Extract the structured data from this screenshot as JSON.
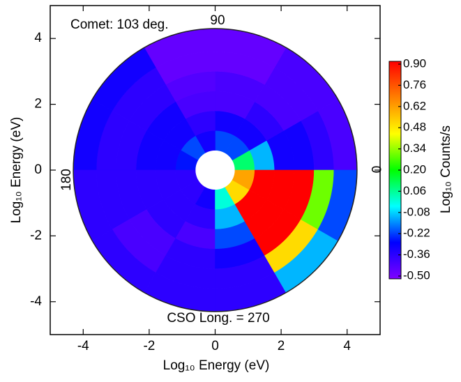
{
  "chart_data": {
    "type": "polar-heatmap",
    "annotations": [
      "Comet: 103 deg.",
      "90",
      "180",
      "0",
      "CSO Long. = 270"
    ],
    "xlabel": "Log₁₀ Energy (eV)",
    "ylabel": "Log₁₀ Energy (eV)",
    "xlim": [
      -5,
      5
    ],
    "ylim": [
      -5,
      5
    ],
    "xticks": [
      -4,
      -2,
      0,
      2,
      4
    ],
    "yticks": [
      -4,
      -2,
      0,
      2,
      4
    ],
    "angle_edges": [
      0,
      30,
      60,
      90,
      120,
      150,
      180,
      210,
      240,
      270,
      300,
      330,
      360
    ],
    "radius_edges": [
      0.6,
      1.2,
      1.8,
      2.4,
      3.0,
      3.6,
      4.3
    ],
    "values": [
      [
        0.1,
        -0.1,
        -0.3,
        -0.3,
        -0.35,
        -0.4
      ],
      [
        -0.2,
        -0.3,
        -0.35,
        -0.4,
        -0.4,
        -0.4
      ],
      [
        -0.2,
        -0.3,
        -0.4,
        -0.4,
        -0.45,
        -0.45
      ],
      [
        -0.3,
        -0.35,
        -0.4,
        -0.42,
        -0.45,
        -0.45
      ],
      [
        -0.2,
        -0.3,
        -0.3,
        -0.35,
        -0.35,
        -0.3
      ],
      [
        -0.25,
        -0.3,
        -0.3,
        -0.35,
        -0.35,
        -0.3
      ],
      [
        -0.35,
        -0.35,
        -0.35,
        -0.35,
        -0.35,
        -0.35
      ],
      [
        -0.35,
        -0.35,
        -0.35,
        -0.4,
        -0.4,
        -0.35
      ],
      [
        -0.3,
        -0.35,
        -0.4,
        -0.35,
        -0.35,
        -0.35
      ],
      [
        0.0,
        -0.1,
        -0.2,
        -0.3,
        -0.35,
        -0.35
      ],
      [
        0.5,
        0.9,
        0.9,
        0.9,
        0.5,
        -0.1
      ],
      [
        0.6,
        0.9,
        0.9,
        0.9,
        0.3,
        -0.2
      ]
    ],
    "colorbar": {
      "label": "Log₁₀ Counts/s",
      "clim": [
        -0.5,
        0.9
      ],
      "colormap": [
        "#7f00ff",
        "#0000ff",
        "#00ffff",
        "#00ff00",
        "#ffff00",
        "#ff8000",
        "#ff0000"
      ],
      "ticks": [
        {
          "value": 0.9,
          "label": "0.90"
        },
        0.76,
        0.62,
        0.48,
        0.34,
        {
          "value": 0.2,
          "label": "0.20"
        },
        0.06,
        -0.08,
        -0.22,
        -0.36,
        {
          "value": -0.5,
          "label": "-0.50"
        }
      ]
    }
  }
}
